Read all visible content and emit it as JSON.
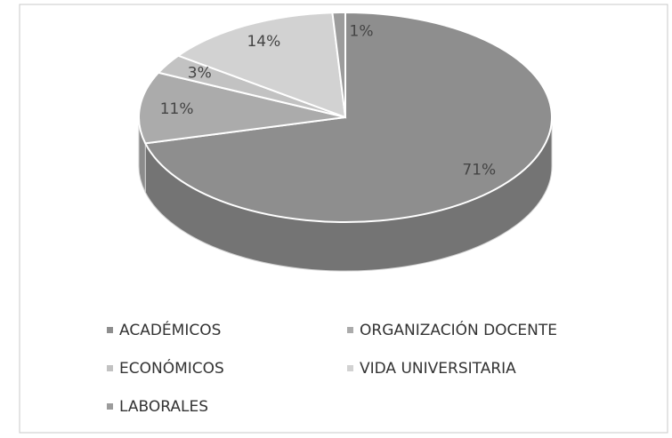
{
  "chart_data": {
    "type": "pie",
    "categories": [
      "ACADÉMICOS",
      "ORGANIZACIÓN DOCENTE",
      "ECONÓMICOS",
      "VIDA UNIVERSITARIA",
      "LABORALES"
    ],
    "values": [
      71,
      11,
      3,
      14,
      1
    ],
    "value_labels": [
      "71%",
      "11%",
      "3%",
      "14%",
      "1%"
    ],
    "colors": [
      "#8e8e8e",
      "#ababab",
      "#c2c2c2",
      "#d2d2d2",
      "#9c9c9c"
    ]
  }
}
